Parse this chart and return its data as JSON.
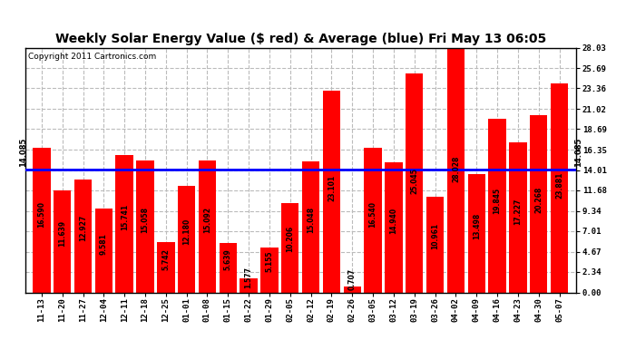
{
  "title": "Weekly Solar Energy Value ($ red) & Average (blue) Fri May 13 06:05",
  "copyright": "Copyright 2011 Cartronics.com",
  "categories": [
    "11-13",
    "11-20",
    "11-27",
    "12-04",
    "12-11",
    "12-18",
    "12-25",
    "01-01",
    "01-08",
    "01-15",
    "01-22",
    "01-29",
    "02-05",
    "02-12",
    "02-19",
    "02-26",
    "03-05",
    "03-12",
    "03-19",
    "03-26",
    "04-02",
    "04-09",
    "04-16",
    "04-23",
    "04-30",
    "05-07"
  ],
  "values": [
    16.59,
    11.639,
    12.927,
    9.581,
    15.741,
    15.058,
    5.742,
    12.18,
    15.092,
    5.639,
    1.577,
    5.155,
    10.206,
    15.048,
    23.101,
    0.707,
    16.54,
    14.94,
    25.045,
    10.961,
    28.028,
    13.498,
    19.845,
    17.227,
    20.268,
    23.881
  ],
  "average": 14.085,
  "bar_color": "#FF0000",
  "avg_line_color": "#0000FF",
  "background_color": "#FFFFFF",
  "plot_bg_color": "#FFFFFF",
  "grid_color": "#BBBBBB",
  "ylim": [
    0,
    28.03
  ],
  "yticks": [
    0.0,
    2.34,
    4.67,
    7.01,
    9.34,
    11.68,
    14.01,
    16.35,
    18.69,
    21.02,
    23.36,
    25.69,
    28.03
  ],
  "title_fontsize": 10,
  "copyright_fontsize": 6.5,
  "tick_fontsize": 6.5,
  "bar_label_fontsize": 5.5,
  "avg_label": "14.085",
  "avg_label_fontsize": 6
}
